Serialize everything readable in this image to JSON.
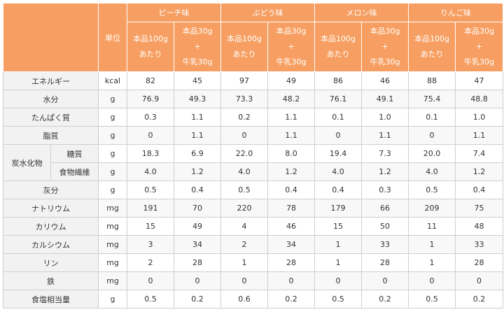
{
  "header": {
    "unit": "単位",
    "flavors": [
      "ピーチ味",
      "ぶどう味",
      "メロン味",
      "りんご味"
    ],
    "col_a": [
      "本品100g",
      "あたり"
    ],
    "col_b": [
      "本品30g",
      "+",
      "牛乳30g"
    ]
  },
  "rows": [
    {
      "label": "エネルギー",
      "unit": "kcal",
      "values": [
        "82",
        "45",
        "97",
        "49",
        "86",
        "46",
        "88",
        "47"
      ]
    },
    {
      "label": "水分",
      "unit": "g",
      "values": [
        "76.9",
        "49.3",
        "73.3",
        "48.2",
        "76.1",
        "49.1",
        "75.4",
        "48.8"
      ]
    },
    {
      "label": "たんぱく質",
      "unit": "g",
      "values": [
        "0.3",
        "1.1",
        "0.2",
        "1.1",
        "0.1",
        "1.0",
        "0.1",
        "1.0"
      ]
    },
    {
      "label": "脂質",
      "unit": "g",
      "values": [
        "0",
        "1.1",
        "0",
        "1.1",
        "0",
        "1.1",
        "0",
        "1.1"
      ]
    },
    {
      "group": "炭水化物",
      "label": "糖質",
      "unit": "g",
      "values": [
        "18.3",
        "6.9",
        "22.0",
        "8.0",
        "19.4",
        "7.3",
        "20.0",
        "7.4"
      ]
    },
    {
      "label": "食物繊維",
      "unit": "g",
      "values": [
        "4.0",
        "1.2",
        "4.0",
        "1.2",
        "4.0",
        "1.2",
        "4.0",
        "1.2"
      ]
    },
    {
      "label": "灰分",
      "unit": "g",
      "values": [
        "0.5",
        "0.4",
        "0.5",
        "0.4",
        "0.4",
        "0.3",
        "0.5",
        "0.4"
      ]
    },
    {
      "label": "ナトリウム",
      "unit": "mg",
      "values": [
        "191",
        "70",
        "220",
        "78",
        "179",
        "66",
        "209",
        "75"
      ]
    },
    {
      "label": "カリウム",
      "unit": "mg",
      "values": [
        "15",
        "49",
        "4",
        "46",
        "15",
        "50",
        "11",
        "48"
      ]
    },
    {
      "label": "カルシウム",
      "unit": "mg",
      "values": [
        "3",
        "34",
        "2",
        "34",
        "1",
        "33",
        "1",
        "33"
      ]
    },
    {
      "label": "リン",
      "unit": "mg",
      "values": [
        "2",
        "28",
        "1",
        "28",
        "1",
        "28",
        "1",
        "28"
      ]
    },
    {
      "label": "鉄",
      "unit": "mg",
      "values": [
        "0",
        "0",
        "0",
        "0",
        "0",
        "0",
        "0",
        "0"
      ]
    },
    {
      "label": "食塩相当量",
      "unit": "g",
      "values": [
        "0.5",
        "0.2",
        "0.6",
        "0.2",
        "0.5",
        "0.2",
        "0.5",
        "0.2"
      ]
    }
  ]
}
